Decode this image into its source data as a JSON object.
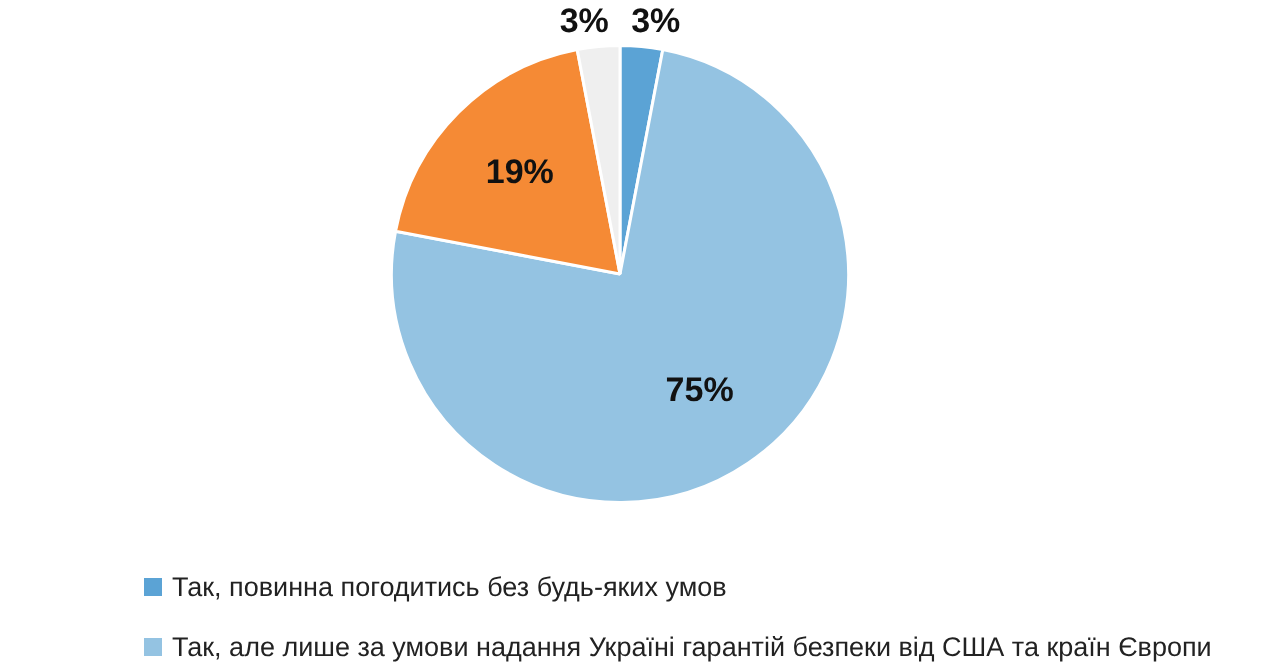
{
  "chart_data": {
    "type": "pie",
    "categories": [
      "Так, повинна погодитись без будь-яких умов",
      "Так, але лише за умови надання Україні гарантій безпеки від США та країн Європи",
      null,
      null
    ],
    "values": [
      3,
      75,
      19,
      3
    ],
    "colors": [
      "#5ba3d5",
      "#94c3e2",
      "#f58a35",
      "#efefef"
    ],
    "value_labels": [
      "3%",
      "75%",
      "19%",
      "3%"
    ],
    "legend": "bottom"
  }
}
